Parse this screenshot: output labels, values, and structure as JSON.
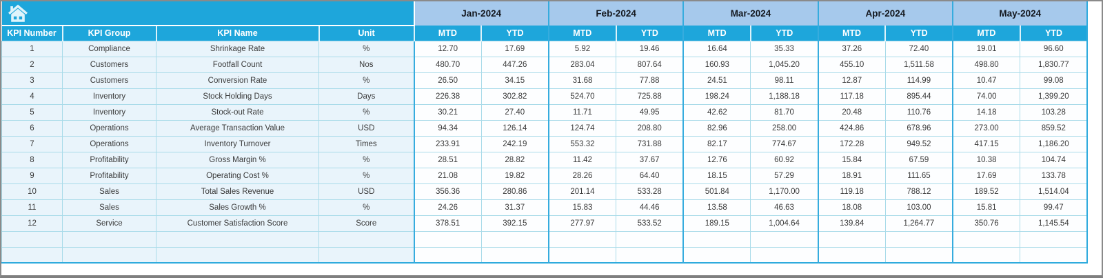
{
  "header": {
    "cols": [
      "KPI Number",
      "KPI Group",
      "KPI Name",
      "Unit"
    ],
    "sub": [
      "MTD",
      "YTD"
    ],
    "months": [
      "Jan-2024",
      "Feb-2024",
      "Mar-2024",
      "Apr-2024",
      "May-2024"
    ]
  },
  "icons": {
    "home": "home-icon"
  },
  "colors": {
    "accent_cyan": "#1ea6db",
    "month_band_blue": "#a6c9ec",
    "row_tint_blue": "#e9f4fb",
    "grid_line": "#a9dbe9",
    "group_divider": "#36acde"
  },
  "rows": [
    {
      "num": "1",
      "group": "Compliance",
      "name": "Shrinkage Rate",
      "unit": "%",
      "values": [
        "12.70",
        "17.69",
        "5.92",
        "19.46",
        "16.64",
        "35.33",
        "37.26",
        "72.40",
        "19.01",
        "96.60"
      ]
    },
    {
      "num": "2",
      "group": "Customers",
      "name": "Footfall Count",
      "unit": "Nos",
      "values": [
        "480.70",
        "447.26",
        "283.04",
        "807.64",
        "160.93",
        "1,045.20",
        "455.10",
        "1,511.58",
        "498.80",
        "1,830.77"
      ]
    },
    {
      "num": "3",
      "group": "Customers",
      "name": "Conversion Rate",
      "unit": "%",
      "values": [
        "26.50",
        "34.15",
        "31.68",
        "77.88",
        "24.51",
        "98.11",
        "12.87",
        "114.99",
        "10.47",
        "99.08"
      ]
    },
    {
      "num": "4",
      "group": "Inventory",
      "name": "Stock Holding Days",
      "unit": "Days",
      "values": [
        "226.38",
        "302.82",
        "524.70",
        "725.88",
        "198.24",
        "1,188.18",
        "117.18",
        "895.44",
        "74.00",
        "1,399.20"
      ]
    },
    {
      "num": "5",
      "group": "Inventory",
      "name": "Stock-out Rate",
      "unit": "%",
      "values": [
        "30.21",
        "27.40",
        "11.71",
        "49.95",
        "42.62",
        "81.70",
        "20.48",
        "110.76",
        "14.18",
        "103.28"
      ]
    },
    {
      "num": "6",
      "group": "Operations",
      "name": "Average Transaction Value",
      "unit": "USD",
      "values": [
        "94.34",
        "126.14",
        "124.74",
        "208.80",
        "82.96",
        "258.00",
        "424.86",
        "678.96",
        "273.00",
        "859.52"
      ]
    },
    {
      "num": "7",
      "group": "Operations",
      "name": "Inventory Turnover",
      "unit": "Times",
      "values": [
        "233.91",
        "242.19",
        "553.32",
        "731.88",
        "82.17",
        "774.67",
        "172.28",
        "949.52",
        "417.15",
        "1,186.20"
      ]
    },
    {
      "num": "8",
      "group": "Profitability",
      "name": "Gross Margin %",
      "unit": "%",
      "values": [
        "28.51",
        "28.82",
        "11.42",
        "37.67",
        "12.76",
        "60.92",
        "15.84",
        "67.59",
        "10.38",
        "104.74"
      ]
    },
    {
      "num": "9",
      "group": "Profitability",
      "name": "Operating Cost %",
      "unit": "%",
      "values": [
        "21.08",
        "19.82",
        "28.26",
        "64.40",
        "18.15",
        "57.29",
        "18.91",
        "111.65",
        "17.69",
        "133.78"
      ]
    },
    {
      "num": "10",
      "group": "Sales",
      "name": "Total Sales Revenue",
      "unit": "USD",
      "values": [
        "356.36",
        "280.86",
        "201.14",
        "533.28",
        "501.84",
        "1,170.00",
        "119.18",
        "788.12",
        "189.52",
        "1,514.04"
      ]
    },
    {
      "num": "11",
      "group": "Sales",
      "name": "Sales Growth %",
      "unit": "%",
      "values": [
        "24.26",
        "31.37",
        "15.83",
        "44.46",
        "13.58",
        "46.63",
        "18.08",
        "103.00",
        "15.81",
        "99.47"
      ]
    },
    {
      "num": "12",
      "group": "Service",
      "name": "Customer Satisfaction Score",
      "unit": "Score",
      "values": [
        "378.51",
        "392.15",
        "277.97",
        "533.52",
        "189.15",
        "1,004.64",
        "139.84",
        "1,264.77",
        "350.76",
        "1,145.54"
      ]
    },
    {
      "num": "",
      "group": "",
      "name": "",
      "unit": "",
      "values": [
        "",
        "",
        "",
        "",
        "",
        "",
        "",
        "",
        "",
        ""
      ]
    },
    {
      "num": "",
      "group": "",
      "name": "",
      "unit": "",
      "values": [
        "",
        "",
        "",
        "",
        "",
        "",
        "",
        "",
        "",
        ""
      ]
    }
  ]
}
